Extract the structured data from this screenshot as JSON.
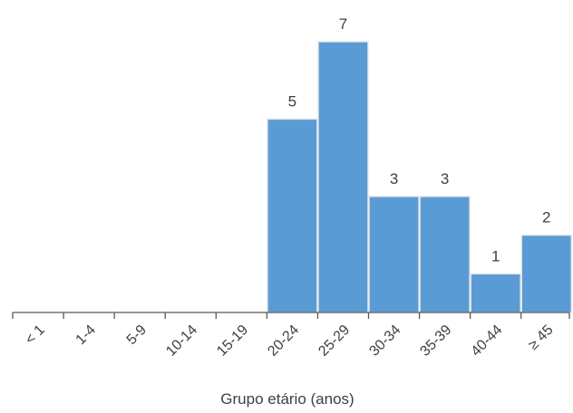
{
  "chart_data": {
    "type": "bar",
    "categories": [
      "< 1",
      "1-4",
      "5-9",
      "10-14",
      "15-19",
      "20-24",
      "25-29",
      "30-34",
      "35-39",
      "40-44",
      "≥ 45"
    ],
    "values": [
      0,
      0,
      0,
      0,
      0,
      5,
      7,
      3,
      3,
      1,
      2
    ],
    "data_labels": [
      "",
      "",
      "",
      "",
      "",
      "5",
      "7",
      "3",
      "3",
      "1",
      "2"
    ],
    "title": "",
    "xlabel": "Grupo etário (anos)",
    "ylabel": "",
    "ylim": [
      0,
      7
    ],
    "grid": false,
    "legend": "none",
    "bar_color": "#5B9BD5",
    "bar_edge_color": "#E8E8E8",
    "axis_color": "#595959",
    "text_color": "#404040"
  }
}
